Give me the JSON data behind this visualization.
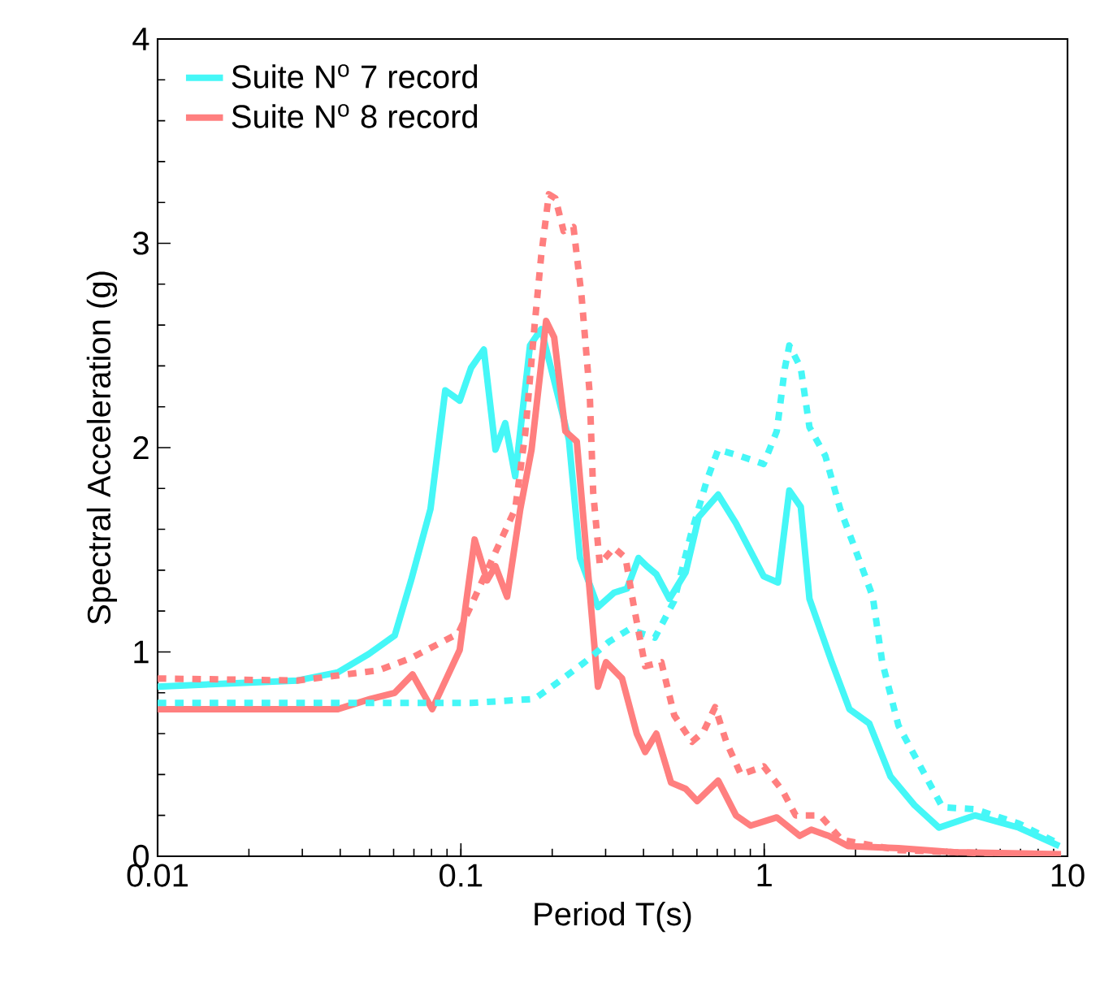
{
  "chart_data": {
    "type": "line",
    "xlabel": "Period T(s)",
    "ylabel": "Spectral Acceleration (g)",
    "xlim": [
      0.01,
      10
    ],
    "ylim": [
      0,
      4
    ],
    "xticks": [
      0.01,
      0.1,
      1,
      10
    ],
    "yticks": [
      0,
      1,
      2,
      3,
      4
    ],
    "log": "x",
    "legend": "top left",
    "series": [
      {
        "name": "Suite N$^{o}$ 7 record",
        "color": "#45f7f7",
        "line_style": "solid",
        "x": [
          0.01,
          0.0289,
          0.0393,
          0.0497,
          0.0605,
          0.0685,
          0.0794,
          0.0888,
          0.0991,
          0.108,
          0.119,
          0.13,
          0.14,
          0.151,
          0.169,
          0.184,
          0.227,
          0.247,
          0.283,
          0.32,
          0.353,
          0.385,
          0.41,
          0.441,
          0.487,
          0.551,
          0.608,
          0.705,
          0.807,
          0.996,
          1.11,
          1.21,
          1.32,
          1.41,
          1.67,
          1.91,
          2.22,
          2.61,
          3.13,
          3.77,
          4.95,
          6.91,
          9.4
        ],
        "values": [
          0.83,
          0.86,
          0.9,
          0.99,
          1.08,
          1.35,
          1.7,
          2.28,
          2.23,
          2.39,
          2.48,
          1.99,
          2.12,
          1.86,
          2.5,
          2.58,
          2.04,
          1.46,
          1.22,
          1.29,
          1.31,
          1.46,
          1.42,
          1.38,
          1.26,
          1.39,
          1.66,
          1.77,
          1.63,
          1.37,
          1.34,
          1.79,
          1.71,
          1.26,
          0.95,
          0.72,
          0.65,
          0.39,
          0.25,
          0.14,
          0.2,
          0.14,
          0.05
        ]
      },
      {
        "name": "Suite N$^{o}$ 8 record",
        "color": "#ff7f7f",
        "line_style": "solid",
        "x": [
          0.01,
          0.0393,
          0.0503,
          0.0605,
          0.0693,
          0.0804,
          0.0991,
          0.111,
          0.122,
          0.13,
          0.142,
          0.157,
          0.171,
          0.191,
          0.203,
          0.221,
          0.241,
          0.283,
          0.301,
          0.34,
          0.38,
          0.405,
          0.441,
          0.493,
          0.551,
          0.601,
          0.705,
          0.807,
          0.902,
          1.1,
          1.31,
          1.43,
          1.63,
          1.89,
          2.77,
          4.22,
          9.52
        ],
        "values": [
          0.72,
          0.72,
          0.77,
          0.8,
          0.89,
          0.72,
          1.01,
          1.55,
          1.35,
          1.42,
          1.27,
          1.7,
          1.99,
          2.62,
          2.54,
          2.08,
          2.03,
          0.83,
          0.95,
          0.87,
          0.6,
          0.51,
          0.6,
          0.36,
          0.33,
          0.27,
          0.37,
          0.2,
          0.15,
          0.19,
          0.1,
          0.13,
          0.1,
          0.05,
          0.04,
          0.02,
          0.01
        ]
      },
      {
        "color": "#45f7f7",
        "line_style": "dotted",
        "x": [
          0.01,
          0.108,
          0.175,
          0.208,
          0.256,
          0.308,
          0.358,
          0.436,
          0.505,
          0.572,
          0.647,
          0.705,
          0.828,
          0.996,
          1.1,
          1.17,
          1.21,
          1.32,
          1.41,
          1.59,
          1.78,
          2.01,
          2.28,
          2.45,
          2.77,
          3.3,
          3.87,
          4.95,
          6.91,
          9.4
        ],
        "values": [
          0.75,
          0.75,
          0.77,
          0.85,
          0.95,
          1.05,
          1.11,
          1.07,
          1.25,
          1.57,
          1.84,
          1.99,
          1.96,
          1.92,
          2.08,
          2.39,
          2.5,
          2.39,
          2.1,
          1.96,
          1.7,
          1.49,
          1.27,
          0.95,
          0.64,
          0.43,
          0.24,
          0.23,
          0.16,
          0.06
        ]
      },
      {
        "color": "#ff7f7f",
        "line_style": "dotted",
        "x": [
          0.01,
          0.0289,
          0.0535,
          0.0685,
          0.098,
          0.151,
          0.163,
          0.175,
          0.184,
          0.195,
          0.205,
          0.218,
          0.235,
          0.25,
          0.266,
          0.273,
          0.287,
          0.32,
          0.349,
          0.371,
          0.405,
          0.458,
          0.505,
          0.578,
          0.631,
          0.689,
          0.75,
          0.838,
          0.996,
          1.15,
          1.27,
          1.53,
          1.8,
          2.77,
          9.52
        ],
        "values": [
          0.87,
          0.86,
          0.91,
          0.97,
          1.09,
          1.7,
          2.07,
          2.6,
          2.94,
          3.24,
          3.22,
          3.06,
          3.08,
          2.74,
          2.26,
          1.78,
          1.43,
          1.51,
          1.46,
          1.23,
          0.93,
          0.95,
          0.69,
          0.56,
          0.61,
          0.73,
          0.56,
          0.4,
          0.44,
          0.32,
          0.2,
          0.2,
          0.08,
          0.03,
          0.0
        ]
      }
    ]
  }
}
